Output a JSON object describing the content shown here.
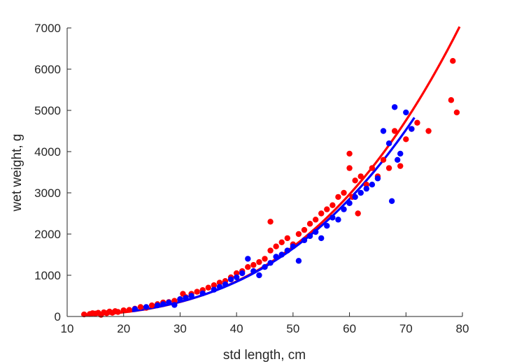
{
  "chart_data": {
    "type": "scatter",
    "title": "",
    "xlabel": "std length, cm",
    "ylabel": "wet weight, g",
    "xlim": [
      10,
      80
    ],
    "ylim": [
      0,
      7000
    ],
    "xticks": [
      10,
      20,
      30,
      40,
      50,
      60,
      70,
      80
    ],
    "yticks": [
      0,
      1000,
      2000,
      3000,
      4000,
      5000,
      6000,
      7000
    ],
    "grid": false,
    "legend": "none",
    "series": [
      {
        "color": "#ff0000",
        "points": [
          [
            13,
            50
          ],
          [
            14,
            60
          ],
          [
            14.5,
            80
          ],
          [
            15,
            70
          ],
          [
            15.5,
            90
          ],
          [
            16,
            40
          ],
          [
            16.5,
            100
          ],
          [
            17,
            80
          ],
          [
            17.5,
            120
          ],
          [
            18,
            90
          ],
          [
            18.5,
            130
          ],
          [
            19,
            110
          ],
          [
            20,
            150
          ],
          [
            21,
            160
          ],
          [
            22,
            190
          ],
          [
            23,
            230
          ],
          [
            24,
            210
          ],
          [
            25,
            270
          ],
          [
            26,
            300
          ],
          [
            27,
            340
          ],
          [
            28,
            350
          ],
          [
            29,
            380
          ],
          [
            30,
            420
          ],
          [
            30.5,
            550
          ],
          [
            31,
            470
          ],
          [
            32,
            550
          ],
          [
            33,
            600
          ],
          [
            34,
            640
          ],
          [
            35,
            700
          ],
          [
            36,
            760
          ],
          [
            37,
            820
          ],
          [
            38,
            860
          ],
          [
            39,
            950
          ],
          [
            40,
            1050
          ],
          [
            41,
            1100
          ],
          [
            42,
            1200
          ],
          [
            43,
            1250
          ],
          [
            44,
            1320
          ],
          [
            45,
            1400
          ],
          [
            46,
            2300
          ],
          [
            46,
            1600
          ],
          [
            47,
            1700
          ],
          [
            48,
            1800
          ],
          [
            49,
            1900
          ],
          [
            50,
            1750
          ],
          [
            51,
            2000
          ],
          [
            52,
            2100
          ],
          [
            53,
            2250
          ],
          [
            54,
            2350
          ],
          [
            55,
            2500
          ],
          [
            56,
            2600
          ],
          [
            57,
            2700
          ],
          [
            58,
            2900
          ],
          [
            59,
            3000
          ],
          [
            60,
            3950
          ],
          [
            60,
            3600
          ],
          [
            60.5,
            2900
          ],
          [
            61,
            3300
          ],
          [
            61.5,
            2500
          ],
          [
            62,
            3400
          ],
          [
            63,
            3200
          ],
          [
            64,
            3600
          ],
          [
            65,
            3400
          ],
          [
            66,
            3800
          ],
          [
            67,
            3600
          ],
          [
            68,
            4500
          ],
          [
            69,
            3650
          ],
          [
            70,
            4300
          ],
          [
            71,
            4550
          ],
          [
            72,
            4700
          ],
          [
            74,
            4500
          ],
          [
            78,
            5250
          ],
          [
            78.3,
            6200
          ],
          [
            79,
            4950
          ]
        ]
      },
      {
        "color": "#0000ff",
        "points": [
          [
            22,
            180
          ],
          [
            24,
            230
          ],
          [
            26,
            270
          ],
          [
            27,
            300
          ],
          [
            28,
            340
          ],
          [
            29,
            280
          ],
          [
            30,
            420
          ],
          [
            31,
            450
          ],
          [
            32,
            500
          ],
          [
            34,
            560
          ],
          [
            36,
            650
          ],
          [
            37,
            720
          ],
          [
            38,
            780
          ],
          [
            39,
            900
          ],
          [
            40,
            950
          ],
          [
            41,
            1050
          ],
          [
            42,
            1400
          ],
          [
            43,
            1100
          ],
          [
            44,
            1000
          ],
          [
            45,
            1200
          ],
          [
            46,
            1300
          ],
          [
            47,
            1450
          ],
          [
            48,
            1500
          ],
          [
            49,
            1600
          ],
          [
            50,
            1700
          ],
          [
            51,
            1350
          ],
          [
            52,
            1850
          ],
          [
            53,
            1950
          ],
          [
            54,
            2050
          ],
          [
            55,
            1900
          ],
          [
            56,
            2200
          ],
          [
            57,
            2400
          ],
          [
            58,
            2350
          ],
          [
            59,
            2600
          ],
          [
            60,
            2750
          ],
          [
            61,
            2900
          ],
          [
            62,
            3000
          ],
          [
            63,
            3100
          ],
          [
            64,
            3200
          ],
          [
            65,
            3350
          ],
          [
            66,
            4500
          ],
          [
            67,
            4200
          ],
          [
            67.5,
            2800
          ],
          [
            68,
            5080
          ],
          [
            68.5,
            3800
          ],
          [
            69,
            3950
          ],
          [
            70,
            4950
          ],
          [
            71,
            4550
          ]
        ]
      }
    ],
    "fits": [
      {
        "color": "#ff0000",
        "a": 0.0103,
        "b": 3.07,
        "x_range": [
          13,
          79.5
        ]
      },
      {
        "color": "#0000ff",
        "a": 0.0132,
        "b": 3.0,
        "x_range": [
          21.5,
          71.5
        ]
      }
    ]
  }
}
